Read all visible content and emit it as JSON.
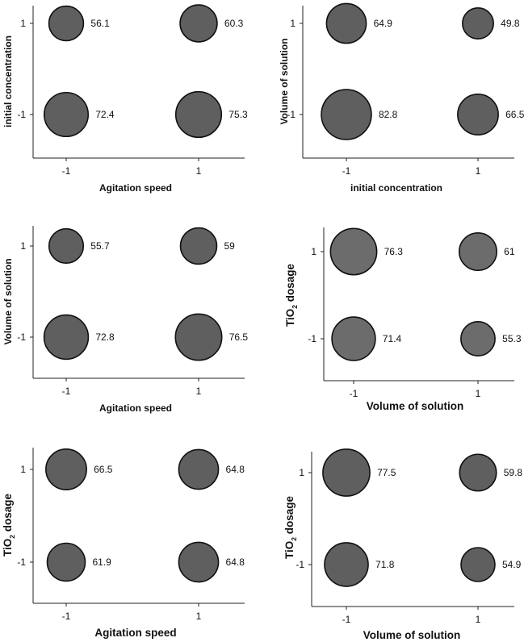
{
  "chart_data": [
    {
      "type": "bubble",
      "xlabel": "Agitation speed",
      "ylabel": "initial concentration",
      "x_ticks": [
        "-1",
        "1"
      ],
      "y_ticks": [
        "1",
        "-1"
      ],
      "points": [
        {
          "x": -1,
          "y": 1,
          "value": 56.1,
          "label": "56.1"
        },
        {
          "x": 1,
          "y": 1,
          "value": 60.3,
          "label": "60.3"
        },
        {
          "x": -1,
          "y": -1,
          "value": 72.4,
          "label": "72.4"
        },
        {
          "x": 1,
          "y": -1,
          "value": 75.3,
          "label": "75.3"
        }
      ]
    },
    {
      "type": "bubble",
      "xlabel": "initial concentration",
      "ylabel": "Volume of solution",
      "x_ticks": [
        "-1",
        "1"
      ],
      "y_ticks": [
        "1",
        "-1"
      ],
      "points": [
        {
          "x": -1,
          "y": 1,
          "value": 64.9,
          "label": "64.9"
        },
        {
          "x": 1,
          "y": 1,
          "value": 49.8,
          "label": "49.8"
        },
        {
          "x": -1,
          "y": -1,
          "value": 82.8,
          "label": "82.8"
        },
        {
          "x": 1,
          "y": -1,
          "value": 66.5,
          "label": "66.5"
        }
      ]
    },
    {
      "type": "bubble",
      "xlabel": "Agitation speed",
      "ylabel": "Volume of solution",
      "x_ticks": [
        "-1",
        "1"
      ],
      "y_ticks": [
        "1",
        "-1"
      ],
      "points": [
        {
          "x": -1,
          "y": 1,
          "value": 55.7,
          "label": "55.7"
        },
        {
          "x": 1,
          "y": 1,
          "value": 59,
          "label": "59"
        },
        {
          "x": -1,
          "y": -1,
          "value": 72.8,
          "label": "72.8"
        },
        {
          "x": 1,
          "y": -1,
          "value": 76.5,
          "label": "76.5"
        }
      ]
    },
    {
      "type": "bubble",
      "xlabel": "Volume of solution",
      "ylabel": "TiO2 dosage",
      "ylabel_main": "TiO",
      "ylabel_sub": "2",
      "ylabel_rest": " dosage",
      "x_ticks": [
        "-1",
        "1"
      ],
      "y_ticks": [
        "1",
        "-1"
      ],
      "points": [
        {
          "x": -1,
          "y": 1,
          "value": 76.3,
          "label": "76.3"
        },
        {
          "x": 1,
          "y": 1,
          "value": 61,
          "label": "61"
        },
        {
          "x": -1,
          "y": -1,
          "value": 71.4,
          "label": "71.4"
        },
        {
          "x": 1,
          "y": -1,
          "value": 55.3,
          "label": "55.3"
        }
      ]
    },
    {
      "type": "bubble",
      "xlabel": "Agitation speed",
      "ylabel": "TiO2 dosage",
      "ylabel_main": "TiO",
      "ylabel_sub": "2",
      "ylabel_rest": " dosage",
      "x_ticks": [
        "-1",
        "1"
      ],
      "y_ticks": [
        "1",
        "-1"
      ],
      "points": [
        {
          "x": -1,
          "y": 1,
          "value": 66.5,
          "label": "66.5"
        },
        {
          "x": 1,
          "y": 1,
          "value": 64.8,
          "label": "64.8"
        },
        {
          "x": -1,
          "y": -1,
          "value": 61.9,
          "label": "61.9"
        },
        {
          "x": 1,
          "y": -1,
          "value": 64.8,
          "label": "64.8"
        }
      ]
    },
    {
      "type": "bubble",
      "xlabel": "Volume of solution",
      "ylabel": "TiO2 dosage",
      "ylabel_main": "TiO",
      "ylabel_sub": "2",
      "ylabel_rest": " dosage",
      "x_ticks": [
        "-1",
        "1"
      ],
      "y_ticks": [
        "1",
        "-1"
      ],
      "points": [
        {
          "x": -1,
          "y": 1,
          "value": 77.5,
          "label": "77.5"
        },
        {
          "x": 1,
          "y": 1,
          "value": 59.8,
          "label": "59.8"
        },
        {
          "x": -1,
          "y": -1,
          "value": 71.8,
          "label": "71.8"
        },
        {
          "x": 1,
          "y": -1,
          "value": 54.9,
          "label": "54.9"
        }
      ]
    }
  ],
  "colors": {
    "bubble_fill": "#5f5f5f",
    "bubble_fill_alt": "#6c6c6c",
    "bubble_stroke": "#111111",
    "axis": "#222222",
    "text": "#111111"
  }
}
